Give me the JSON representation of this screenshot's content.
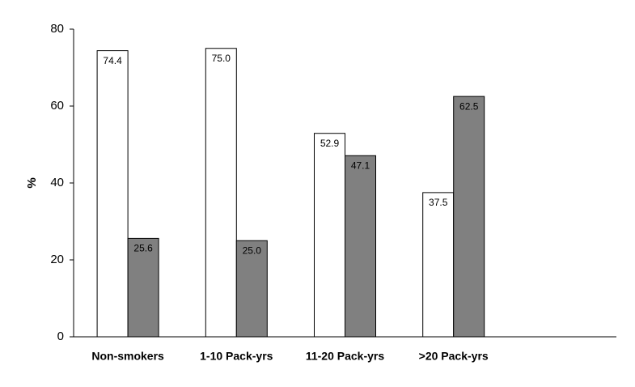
{
  "chart_data": {
    "type": "bar",
    "y_label": "%",
    "categories": [
      "Non-smokers",
      "1-10 Pack-yrs",
      "11-20 Pack-yrs",
      ">20 Pack-yrs",
      null
    ],
    "series": [
      {
        "color": "#ffffff",
        "values": [
          74.4,
          75.0,
          52.9,
          37.5,
          null
        ],
        "value_labels": [
          "74.4",
          "75.0",
          "52.9",
          "37.5",
          null
        ]
      },
      {
        "color": "#808080",
        "values": [
          25.6,
          25.0,
          47.1,
          62.5,
          null
        ],
        "value_labels": [
          "25.6",
          "25.0",
          "47.1",
          "62.5",
          null
        ]
      }
    ],
    "ylim": [
      0,
      80
    ],
    "yticks": [
      0,
      20,
      40,
      60,
      80
    ],
    "grid": false
  }
}
